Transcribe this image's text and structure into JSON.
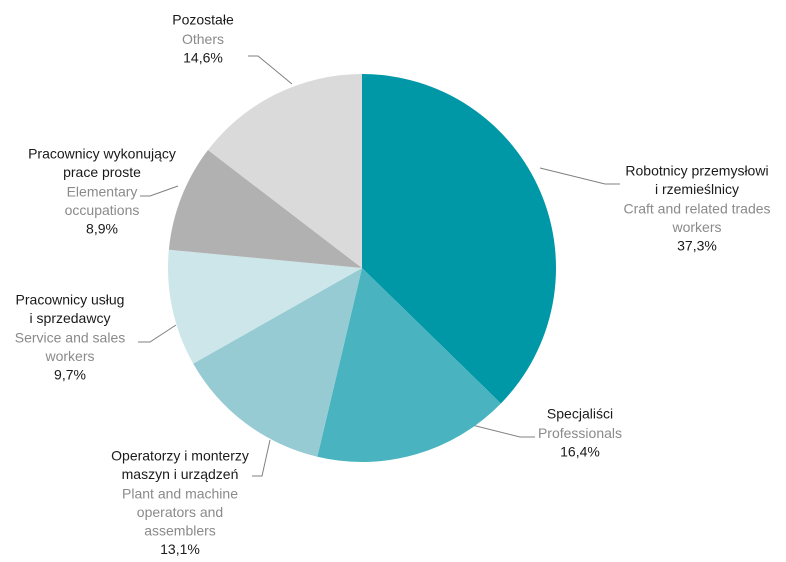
{
  "chart_data": {
    "type": "pie",
    "categories": [
      [
        "Robotnicy przemysłowi",
        "i rzemieślnicy"
      ],
      [
        "Specjaliści"
      ],
      [
        "Operatorzy i monterzy",
        "maszyn i urządzeń"
      ],
      [
        "Pracownicy usług",
        "i sprzedawcy"
      ],
      [
        "Pracownicy wykonujący",
        "prace proste"
      ],
      [
        "Pozostałe"
      ]
    ],
    "english_labels": [
      [
        "Craft and related trades",
        "workers"
      ],
      [
        "Professionals"
      ],
      [
        "Plant  and machine",
        "operators and",
        "assemblers"
      ],
      [
        "Service and sales",
        "workers"
      ],
      [
        "Elementary",
        "occupations"
      ],
      [
        "Others"
      ]
    ],
    "values": [
      37.3,
      16.4,
      13.1,
      9.7,
      8.9,
      14.6
    ],
    "value_labels": [
      "37,3%",
      "16,4%",
      "13,1%",
      "9,7%",
      "8,9%",
      "14,6%"
    ],
    "colors": [
      "#0097a7",
      "#49b4bf",
      "#96cbd3",
      "#cde6ea",
      "#b1b1b1",
      "#dadada"
    ]
  }
}
